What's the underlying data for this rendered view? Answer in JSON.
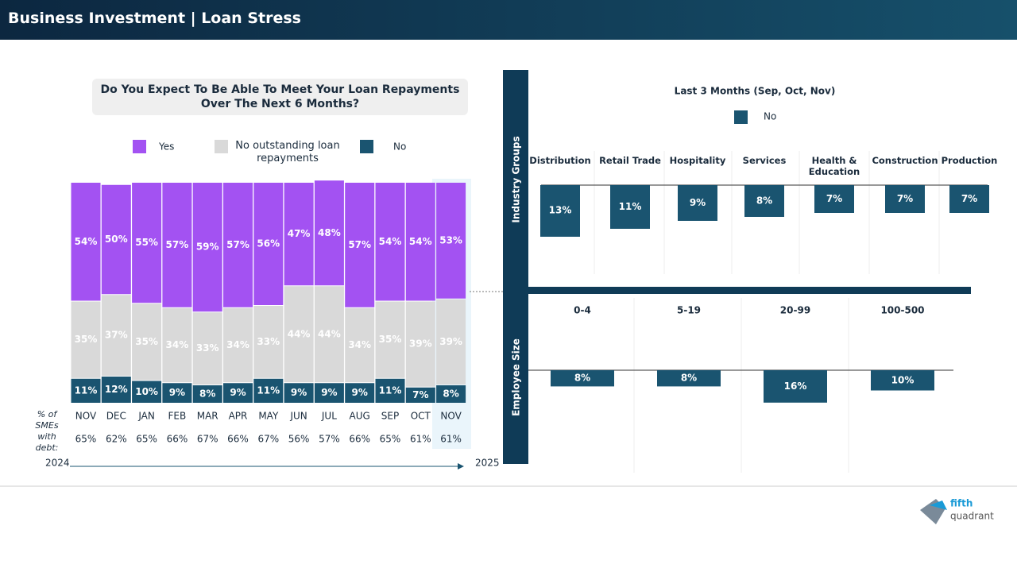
{
  "header": {
    "title": "Business Investment | Loan Stress"
  },
  "logo": {
    "top": "fifth",
    "bottom": "quadrant"
  },
  "chart_data": [
    {
      "type": "stacked-bar",
      "title": "Do You Expect To Be Able To Meet Your Loan Repayments Over The Next 6 Months?",
      "categories": [
        "NOV",
        "DEC",
        "JAN",
        "FEB",
        "MAR",
        "APR",
        "MAY",
        "JUN",
        "JUL",
        "AUG",
        "SEP",
        "OCT",
        "NOV"
      ],
      "series": [
        {
          "name": "Yes",
          "color": "#a352f2",
          "values": [
            54,
            50,
            55,
            57,
            59,
            57,
            56,
            47,
            48,
            57,
            54,
            54,
            53
          ],
          "value_labels": [
            "54%",
            "50%",
            "55%",
            "57%",
            "59%",
            "57%",
            "56%",
            "47%",
            "48%",
            "57%",
            "54%",
            "54%",
            "53%"
          ]
        },
        {
          "name": "No outstanding loan repayments",
          "color": "#d9d9d9",
          "values": [
            35,
            37,
            35,
            34,
            33,
            34,
            33,
            44,
            44,
            34,
            35,
            39,
            39
          ],
          "value_labels": [
            "35%",
            "37%",
            "35%",
            "34%",
            "33%",
            "34%",
            "33%",
            "44%",
            "44%",
            "34%",
            "35%",
            "39%",
            "39%"
          ]
        },
        {
          "name": "No",
          "color": "#1a5470",
          "values": [
            11,
            12,
            10,
            9,
            8,
            9,
            11,
            9,
            9,
            9,
            11,
            7,
            8
          ],
          "value_labels": [
            "11%",
            "12%",
            "10%",
            "9%",
            "8%",
            "9%",
            "11%",
            "9%",
            "9%",
            "9%",
            "11%",
            "7%",
            "8%"
          ]
        }
      ],
      "debt": {
        "label": "% of SMEs with debt:",
        "values": [
          65,
          62,
          65,
          66,
          67,
          66,
          67,
          56,
          57,
          66,
          65,
          61,
          61
        ],
        "value_labels": [
          "65%",
          "62%",
          "65%",
          "66%",
          "67%",
          "66%",
          "67%",
          "56%",
          "57%",
          "66%",
          "65%",
          "61%",
          "61%"
        ]
      },
      "period_start": "2024",
      "period_end": "2025"
    },
    {
      "type": "bar-down",
      "title": "Last 3 Months (Sep, Oct, Nov)",
      "group_label": "Industry Groups",
      "categories": [
        "Distribution",
        "Retail Trade",
        "Hospitality",
        "Services",
        "Health & Education",
        "Construction",
        "Production"
      ],
      "series": [
        {
          "name": "No",
          "color": "#1a5470",
          "values": [
            13,
            11,
            9,
            8,
            7,
            7,
            7
          ],
          "value_labels": [
            "13%",
            "11%",
            "9%",
            "8%",
            "7%",
            "7%",
            "7%"
          ]
        }
      ]
    },
    {
      "type": "bar-down",
      "group_label": "Employee Size",
      "categories": [
        "0-4",
        "5-19",
        "20-99",
        "100-500"
      ],
      "color": "#1a5470",
      "values": [
        8,
        8,
        16,
        10
      ],
      "value_labels": [
        "8%",
        "8%",
        "16%",
        "10%"
      ]
    }
  ]
}
